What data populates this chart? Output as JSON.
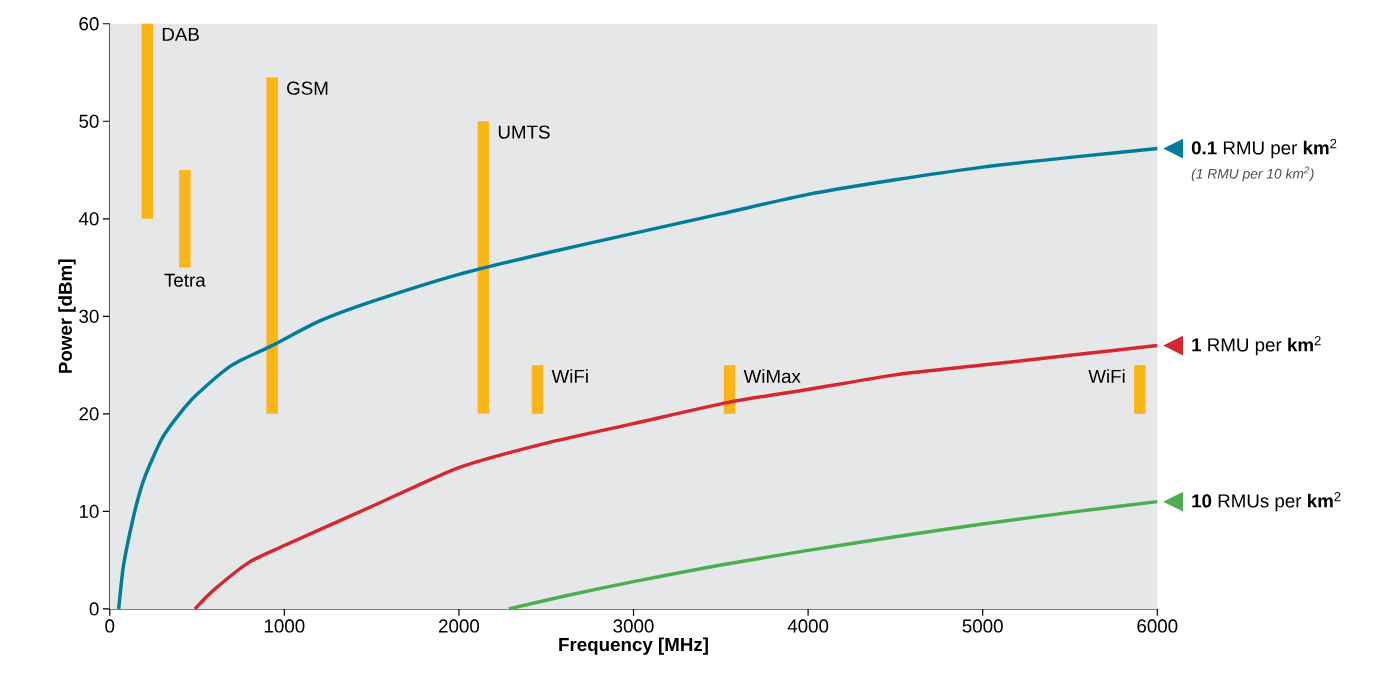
{
  "chart_data": {
    "type": "line",
    "legend": "right",
    "xlabel": "Frequency [MHz]",
    "ylabel": "Power [dBm]",
    "xlim": [
      0,
      6000
    ],
    "ylim": [
      0,
      60
    ],
    "xticks": [
      0,
      1000,
      2000,
      3000,
      4000,
      5000,
      6000
    ],
    "yticks": [
      0,
      10,
      20,
      30,
      40,
      50,
      60
    ],
    "series": [
      {
        "type": "bar",
        "color": "#fbb616",
        "x": [
          215,
          430,
          930,
          2140,
          2450,
          3550,
          5900
        ],
        "base": [
          40,
          35,
          20,
          20,
          20,
          20,
          20
        ],
        "values": [
          20,
          10,
          34.5,
          30,
          5,
          5,
          5
        ]
      },
      {
        "name": "**0.1** RMU per **km**$^{2}$",
        "color": "#007d9c",
        "x": [
          51,
          75,
          100,
          150,
          200,
          300,
          400,
          500,
          700,
          930,
          1200,
          1500,
          2000,
          2500,
          3000,
          3500,
          4000,
          4500,
          5000,
          5500,
          6000
        ],
        "values": [
          0,
          4,
          6.5,
          10.5,
          13.5,
          17.5,
          20,
          22,
          25,
          27,
          29.5,
          31.5,
          34.3,
          36.5,
          38.5,
          40.5,
          42.5,
          44,
          45.3,
          46.3,
          47.2
        ]
      },
      {
        "name": "**1** RMU per **km**$^{2}$",
        "color": "#d7262e",
        "x": [
          488,
          600,
          800,
          1000,
          1500,
          2000,
          2500,
          3000,
          3550,
          4000,
          4500,
          5000,
          5500,
          6000
        ],
        "values": [
          0,
          2,
          4.8,
          6.5,
          10.5,
          14.5,
          17,
          19,
          21.2,
          22.5,
          24,
          25,
          26,
          27
        ]
      },
      {
        "name": "**10** RMUs per **km**$^{2}$",
        "color": "#4bae4f",
        "x": [
          2286,
          2600,
          3000,
          3500,
          4000,
          4500,
          5000,
          5500,
          6000
        ],
        "values": [
          0,
          1.3,
          2.8,
          4.5,
          6,
          7.4,
          8.7,
          9.9,
          11
        ]
      }
    ],
    "annotations": [
      {
        "text": "DAB",
        "x": 215,
        "y": 60
      },
      {
        "text": "Tetra",
        "x": 430,
        "y": 35
      },
      {
        "text": "GSM",
        "x": 930,
        "y": 54.5
      },
      {
        "text": "UMTS",
        "x": 2140,
        "y": 50
      },
      {
        "text": "WiFi",
        "x": 2450,
        "y": 25
      },
      {
        "text": "WiMax",
        "x": 3550,
        "y": 25
      },
      {
        "text": "WiFi",
        "x": 5900,
        "y": 25
      },
      "(1 RMU per 10 km$^{2}$)"
    ]
  }
}
